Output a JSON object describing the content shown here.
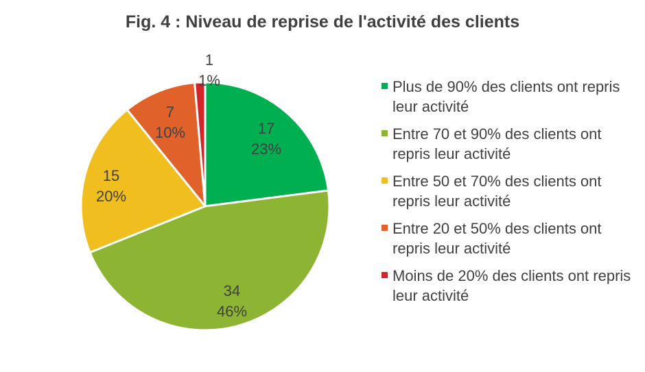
{
  "chart_data": {
    "type": "pie",
    "title": "Fig. 4 : Niveau de reprise de l'activité des clients",
    "slices": [
      {
        "label": "Plus de 90% des clients ont repris leur activité",
        "value": 17,
        "percent_label": "23%",
        "color": "#00b050"
      },
      {
        "label": "Entre 70 et 90% des clients ont repris leur activité",
        "value": 34,
        "percent_label": "46%",
        "color": "#8db433"
      },
      {
        "label": "Entre 50 et 70% des clients ont repris leur activité",
        "value": 15,
        "percent_label": "20%",
        "color": "#f0be1e"
      },
      {
        "label": "Entre 20 et 50% des clients ont repris leur activité",
        "value": 7,
        "percent_label": "10%",
        "color": "#e0622a"
      },
      {
        "label": "Moins de 20% des clients ont repris leur activité",
        "value": 1,
        "percent_label": "1%",
        "color": "#d0262a"
      }
    ],
    "start_angle_deg": 0,
    "direction": "clockwise",
    "legend_position": "right"
  }
}
